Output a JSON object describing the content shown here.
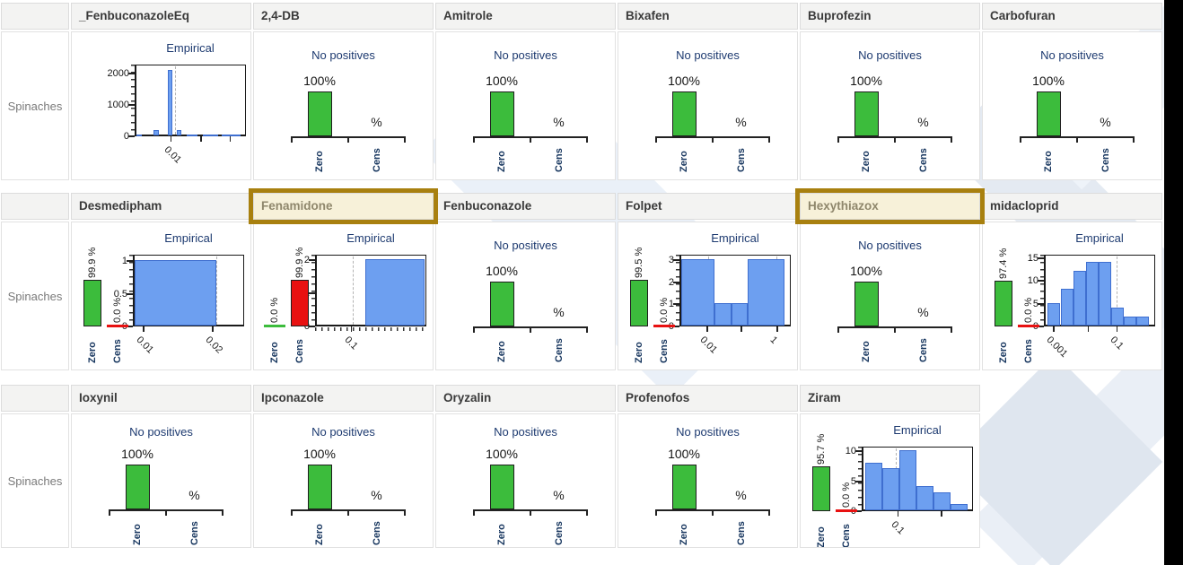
{
  "chart_data": {
    "type": "trellis_histogram_grid",
    "row_label": "Spinaches",
    "shared_labels": {
      "empirical": "Empirical",
      "no_positives": "No positives",
      "zero": "Zero",
      "cens": "Cens",
      "percent_axis": "%",
      "full_pct": "100%"
    },
    "rows": [
      {
        "panels": [
          {
            "name": "_FenbuconazoleEq",
            "highlighted": false,
            "kind": "empirical",
            "hist": {
              "title": "Empirical",
              "ymax": 2300,
              "yticks": [
                {
                  "v": 0,
                  "label": "0"
                },
                {
                  "v": 1000,
                  "label": "1000"
                },
                {
                  "v": 2000,
                  "label": "2000"
                }
              ],
              "bars": [
                {
                  "x": 0.0,
                  "w": 0.05,
                  "v": 40
                },
                {
                  "x": 0.155,
                  "w": 0.05,
                  "v": 170
                },
                {
                  "x": 0.295,
                  "w": 0.04,
                  "v": 2100
                },
                {
                  "x": 0.375,
                  "w": 0.04,
                  "v": 170
                },
                {
                  "x": 0.47,
                  "w": 0.1,
                  "v": 35
                },
                {
                  "x": 0.62,
                  "w": 0.14,
                  "v": 35
                },
                {
                  "x": 0.79,
                  "w": 0.18,
                  "v": 35
                }
              ],
              "dashed_x": [
                0.36
              ],
              "xticks": [
                {
                  "x": 0.33,
                  "label": "0.01"
                },
                {
                  "x": 0.6,
                  "label": ""
                },
                {
                  "x": 0.86,
                  "label": ""
                }
              ],
              "log_minor_x": false
            }
          },
          {
            "name": "2,4-DB",
            "highlighted": false,
            "kind": "no_positives",
            "pct": "100%"
          },
          {
            "name": "Amitrole",
            "highlighted": false,
            "kind": "no_positives",
            "pct": "100%"
          },
          {
            "name": "Bixafen",
            "highlighted": false,
            "kind": "no_positives",
            "pct": "100%"
          },
          {
            "name": "Buprofezin",
            "highlighted": false,
            "kind": "no_positives",
            "pct": "100%"
          },
          {
            "name": "Carbofuran",
            "highlighted": false,
            "kind": "no_positives",
            "pct": "100%"
          }
        ]
      },
      {
        "panels": [
          {
            "name": "Desmedipham",
            "highlighted": false,
            "kind": "zero_cens_empirical",
            "zero": {
              "pct": "99.9 %",
              "value": 99.9
            },
            "cens": {
              "pct": "0.0 %",
              "value": 0
            },
            "hist": {
              "title": "Empirical",
              "ymax": 1.1,
              "yticks": [
                {
                  "v": 0,
                  "label": "0"
                },
                {
                  "v": 0.5,
                  "label": "0.5"
                },
                {
                  "v": 1,
                  "label": "1"
                }
              ],
              "bars": [
                {
                  "x": 0.0,
                  "w": 0.755,
                  "v": 1
                }
              ],
              "dashed_x": [
                0.755
              ],
              "xticks": [
                {
                  "x": 0.1,
                  "label": "0.01"
                },
                {
                  "x": 0.72,
                  "label": "0.02"
                }
              ],
              "log_minor_x": false
            }
          },
          {
            "name": "Fenamidone",
            "highlighted": true,
            "kind": "zero_cens_empirical",
            "zero": {
              "pct": "0.0 %",
              "value": 0
            },
            "cens": {
              "pct": "99.9 %",
              "value": 99.9
            },
            "hist": {
              "title": "Empirical",
              "ymax": 2.15,
              "yticks": [
                {
                  "v": 0,
                  "label": "0"
                },
                {
                  "v": 1,
                  "label": "1"
                },
                {
                  "v": 2,
                  "label": "2"
                }
              ],
              "bars": [
                {
                  "x": 0.45,
                  "w": 0.55,
                  "v": 2
                }
              ],
              "dashed_x": [
                0.33
              ],
              "xticks": [
                {
                  "x": 0.33,
                  "label": "0.1"
                }
              ],
              "log_minor_x": true
            }
          },
          {
            "name": "Fenbuconazole",
            "highlighted": false,
            "kind": "no_positives",
            "pct": "100%"
          },
          {
            "name": "Folpet",
            "highlighted": false,
            "kind": "zero_cens_empirical",
            "zero": {
              "pct": "99.5 %",
              "value": 99.5
            },
            "cens": {
              "pct": "0.0 %",
              "value": 0
            },
            "hist": {
              "title": "Empirical",
              "ymax": 3.25,
              "yticks": [
                {
                  "v": 0,
                  "label": "0"
                },
                {
                  "v": 1,
                  "label": "1"
                },
                {
                  "v": 2,
                  "label": "2"
                },
                {
                  "v": 3,
                  "label": "3"
                }
              ],
              "bars": [
                {
                  "x": 0.0,
                  "w": 0.31,
                  "v": 3
                },
                {
                  "x": 0.31,
                  "w": 0.155,
                  "v": 1
                },
                {
                  "x": 0.465,
                  "w": 0.155,
                  "v": 1
                },
                {
                  "x": 0.62,
                  "w": 0.335,
                  "v": 3
                }
              ],
              "dashed_x": [
                0.25,
                0.88
              ],
              "xticks": [
                {
                  "x": 0.25,
                  "label": "0.01"
                },
                {
                  "x": 0.56,
                  "label": ""
                },
                {
                  "x": 0.88,
                  "label": "1"
                }
              ],
              "log_minor_x": false
            }
          },
          {
            "name": "Hexythiazox",
            "highlighted": true,
            "kind": "no_positives",
            "pct": "100%"
          },
          {
            "name": "midacloprid",
            "highlighted": false,
            "kind": "zero_cens_empirical",
            "zero": {
              "pct": "97.4 %",
              "value": 97.4
            },
            "cens": {
              "pct": "0.0 %",
              "value": 0
            },
            "hist": {
              "title": "Empirical",
              "ymax": 15.8,
              "yticks": [
                {
                  "v": 0,
                  "label": "0"
                },
                {
                  "v": 5,
                  "label": "5"
                },
                {
                  "v": 10,
                  "label": "10"
                },
                {
                  "v": 15,
                  "label": "15"
                }
              ],
              "bars": [
                {
                  "x": 0.02,
                  "w": 0.1175,
                  "v": 5
                },
                {
                  "x": 0.1375,
                  "w": 0.1175,
                  "v": 8
                },
                {
                  "x": 0.255,
                  "w": 0.1175,
                  "v": 12
                },
                {
                  "x": 0.3725,
                  "w": 0.1175,
                  "v": 14
                },
                {
                  "x": 0.49,
                  "w": 0.1175,
                  "v": 14
                },
                {
                  "x": 0.6075,
                  "w": 0.1175,
                  "v": 4
                },
                {
                  "x": 0.725,
                  "w": 0.1175,
                  "v": 2
                },
                {
                  "x": 0.8425,
                  "w": 0.1175,
                  "v": 2
                }
              ],
              "dashed_x": [
                0.66
              ],
              "xticks": [
                {
                  "x": 0.09,
                  "label": "0.001"
                },
                {
                  "x": 0.4,
                  "label": ""
                },
                {
                  "x": 0.66,
                  "label": "0.1"
                }
              ],
              "log_minor_x": false
            }
          }
        ]
      },
      {
        "panels": [
          {
            "name": "Ioxynil",
            "highlighted": false,
            "kind": "no_positives",
            "pct": "100%"
          },
          {
            "name": "Ipconazole",
            "highlighted": false,
            "kind": "no_positives",
            "pct": "100%"
          },
          {
            "name": "Oryzalin",
            "highlighted": false,
            "kind": "no_positives",
            "pct": "100%"
          },
          {
            "name": "Profenofos",
            "highlighted": false,
            "kind": "no_positives",
            "pct": "100%"
          },
          {
            "name": "Ziram",
            "highlighted": false,
            "kind": "zero_cens_empirical",
            "zero": {
              "pct": "95.7 %",
              "value": 95.7
            },
            "cens": {
              "pct": "0.0 %",
              "value": 0
            },
            "hist": {
              "title": "Empirical",
              "ymax": 10.8,
              "yticks": [
                {
                  "v": 0,
                  "label": "0"
                },
                {
                  "v": 5,
                  "label": "5"
                },
                {
                  "v": 10,
                  "label": "10"
                }
              ],
              "bars": [
                {
                  "x": 0.02,
                  "w": 0.158,
                  "v": 8
                },
                {
                  "x": 0.178,
                  "w": 0.158,
                  "v": 7
                },
                {
                  "x": 0.336,
                  "w": 0.158,
                  "v": 10
                },
                {
                  "x": 0.494,
                  "w": 0.158,
                  "v": 4
                },
                {
                  "x": 0.652,
                  "w": 0.158,
                  "v": 3
                },
                {
                  "x": 0.81,
                  "w": 0.158,
                  "v": 1
                }
              ],
              "dashed_x": [
                0.3
              ],
              "xticks": [
                {
                  "x": 0.33,
                  "label": "0.1"
                },
                {
                  "x": 0.72,
                  "label": ""
                }
              ],
              "log_minor_x": false
            }
          }
        ]
      }
    ]
  },
  "colors": {
    "zero_bar_green": "#3cbc3c",
    "cens_bar_red": "#e81111",
    "hist_fill": "#6d9ff0",
    "hist_border": "#3f6fd0",
    "navy_text": "#1d3a70",
    "highlight_border": "#a8800f",
    "highlight_bg": "#f7f1d9",
    "header_bg": "#f3f3f2",
    "cell_border": "#dcdcdc",
    "row_label_text": "#7a7a7a",
    "right_strip": "#000000",
    "watermark": "#e4eaf2"
  }
}
